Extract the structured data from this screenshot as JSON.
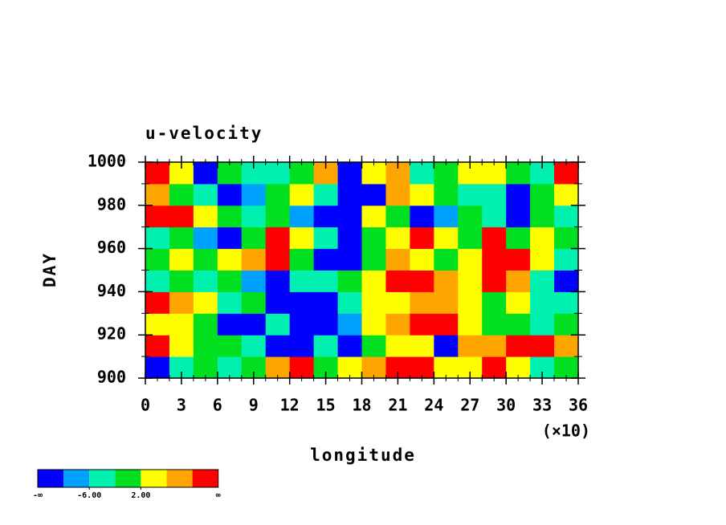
{
  "chart_data": {
    "type": "contour",
    "title": "u-velocity",
    "xlabel": "longitude",
    "xlabel_multiplier": "(×10)",
    "ylabel": "DAY",
    "xlim": [
      0,
      36
    ],
    "xticks": [
      0,
      3,
      6,
      9,
      12,
      15,
      18,
      21,
      24,
      27,
      30,
      33,
      36
    ],
    "ylim": [
      900,
      1000
    ],
    "yticks": [
      900,
      920,
      940,
      960,
      980,
      1000
    ],
    "x": [
      1,
      3,
      5,
      7,
      9,
      11,
      13,
      15,
      17,
      19,
      21,
      23,
      25,
      27,
      29,
      31,
      33,
      35
    ],
    "y": [
      905,
      915,
      925,
      935,
      945,
      955,
      965,
      975,
      985,
      995
    ],
    "z": [
      [
        -12,
        -4,
        0,
        -4,
        0,
        8,
        12,
        0,
        4,
        8,
        12,
        12,
        4,
        4,
        12,
        4,
        -4,
        0
      ],
      [
        12,
        4,
        0,
        0,
        -4,
        -12,
        -12,
        -4,
        -12,
        0,
        4,
        4,
        -12,
        8,
        8,
        12,
        12,
        8
      ],
      [
        4,
        4,
        0,
        -12,
        -12,
        -4,
        -12,
        -12,
        -8,
        4,
        8,
        12,
        12,
        4,
        0,
        0,
        -4,
        0
      ],
      [
        12,
        8,
        4,
        -4,
        0,
        -12,
        -12,
        -12,
        -4,
        4,
        4,
        8,
        8,
        4,
        0,
        4,
        -4,
        -4
      ],
      [
        -4,
        0,
        -4,
        0,
        -8,
        -12,
        -4,
        -4,
        0,
        4,
        12,
        12,
        8,
        4,
        12,
        8,
        -4,
        -12
      ],
      [
        0,
        4,
        0,
        4,
        8,
        12,
        0,
        -12,
        -12,
        0,
        8,
        4,
        0,
        4,
        12,
        12,
        4,
        -4
      ],
      [
        -4,
        0,
        -8,
        -12,
        0,
        12,
        4,
        -4,
        -12,
        0,
        4,
        12,
        4,
        0,
        12,
        0,
        4,
        0
      ],
      [
        12,
        12,
        4,
        0,
        -4,
        0,
        -8,
        -12,
        -12,
        4,
        0,
        -12,
        -8,
        0,
        -4,
        -12,
        0,
        -4
      ],
      [
        8,
        0,
        -4,
        -12,
        -8,
        0,
        4,
        -4,
        -12,
        -12,
        8,
        4,
        0,
        -4,
        -4,
        -12,
        0,
        4
      ],
      [
        12,
        4,
        -12,
        0,
        -4,
        -4,
        0,
        8,
        -12,
        4,
        8,
        -4,
        0,
        4,
        4,
        0,
        -4,
        12
      ]
    ],
    "levels": [
      -10,
      -6,
      -2,
      2,
      6,
      10
    ],
    "colors": [
      "#0000ff",
      "#00a0ff",
      "#00f0b0",
      "#00e020",
      "#ffff00",
      "#ffa500",
      "#ff0000"
    ],
    "colorbar_min_label": "-∞",
    "colorbar_max_label": "∞",
    "colorbar_ticks": [
      {
        "value": -6,
        "label": "-6.00"
      },
      {
        "value": 2,
        "label": "2.00"
      }
    ]
  }
}
